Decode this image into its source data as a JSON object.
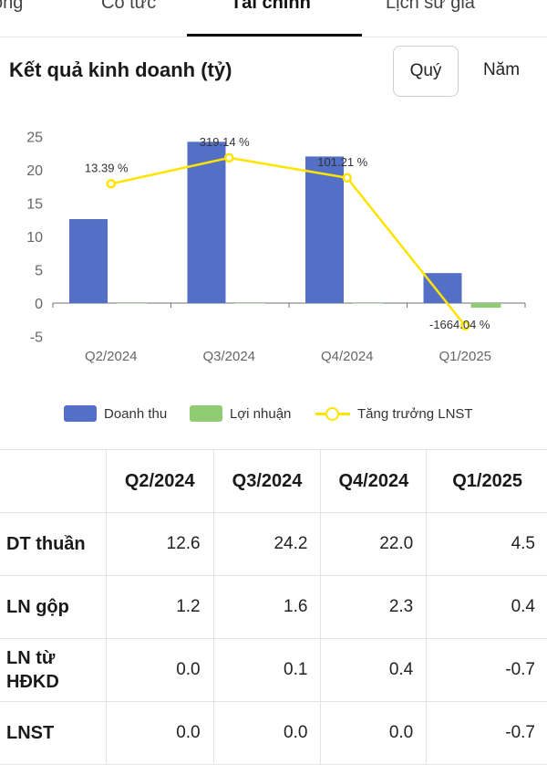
{
  "tabs": [
    {
      "label": "ông",
      "active": false
    },
    {
      "label": "Cổ tức",
      "active": false
    },
    {
      "label": "Tài chính",
      "active": true
    },
    {
      "label": "Lịch sử giá",
      "active": false
    }
  ],
  "section": {
    "title": "Kết quả kinh doanh (tỷ)",
    "period_buttons": [
      {
        "label": "Quý",
        "selected": true
      },
      {
        "label": "Năm",
        "selected": false
      }
    ]
  },
  "chart_data": {
    "type": "bar",
    "categories": [
      "Q2/2024",
      "Q3/2024",
      "Q4/2024",
      "Q1/2025"
    ],
    "y_ticks": [
      "25",
      "20",
      "15",
      "10",
      "5",
      "0",
      "-5"
    ],
    "ylim": [
      -5,
      25
    ],
    "series": [
      {
        "name": "Doanh thu",
        "kind": "bar",
        "color": "#5470c6",
        "values": [
          12.6,
          24.2,
          22.0,
          4.5
        ]
      },
      {
        "name": "Lợi nhuận",
        "kind": "bar",
        "color": "#91cc75",
        "values": [
          0.0,
          0.0,
          0.0,
          -0.7
        ]
      },
      {
        "name": "Tăng trưởng LNST",
        "kind": "line",
        "color": "#ffe400",
        "values": [
          17.9,
          21.8,
          18.8,
          -3.4
        ],
        "labels": [
          "13.39 %",
          "319.14 %",
          "101.21 %",
          "-1664.04 %"
        ]
      }
    ],
    "grid": false,
    "legend": "bottom"
  },
  "table": {
    "columns": [
      "",
      "Q2/2024",
      "Q3/2024",
      "Q4/2024",
      "Q1/2025"
    ],
    "rows": [
      {
        "label": "DT thuần",
        "values": [
          "12.6",
          "24.2",
          "22.0",
          "4.5"
        ]
      },
      {
        "label": "LN gộp",
        "values": [
          "1.2",
          "1.6",
          "2.3",
          "0.4"
        ]
      },
      {
        "label": "LN từ HĐKD",
        "values": [
          "0.0",
          "0.1",
          "0.4",
          "-0.7"
        ]
      },
      {
        "label": "LNST",
        "values": [
          "0.0",
          "0.0",
          "0.0",
          "-0.7"
        ]
      }
    ]
  }
}
